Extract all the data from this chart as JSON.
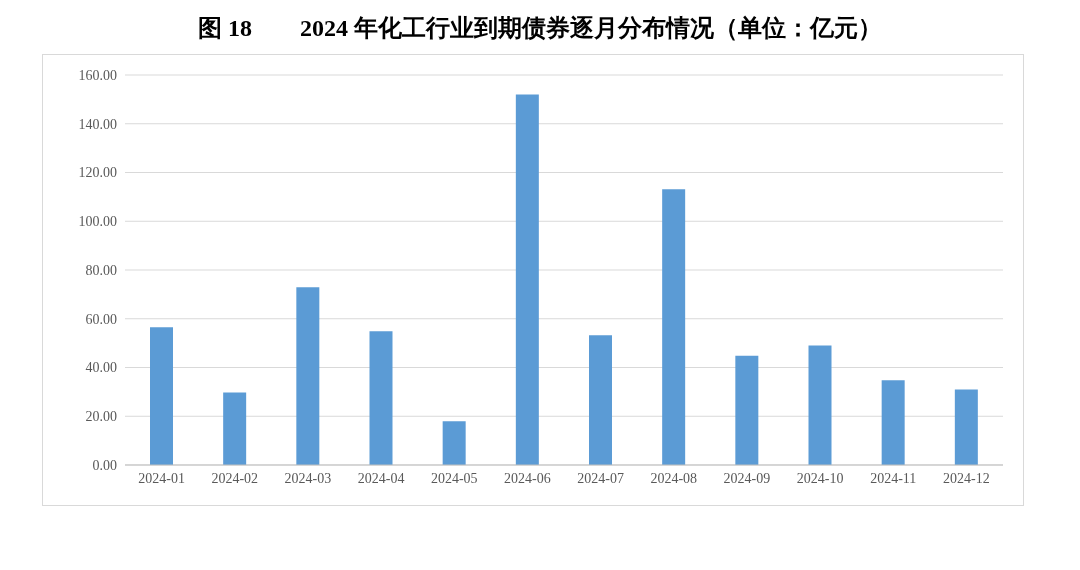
{
  "chart_data": {
    "type": "bar",
    "title": "图 18　　2024 年化工行业到期债券逐月分布情况（单位：亿元）",
    "categories": [
      "2024-01",
      "2024-02",
      "2024-03",
      "2024-04",
      "2024-05",
      "2024-06",
      "2024-07",
      "2024-08",
      "2024-09",
      "2024-10",
      "2024-11",
      "2024-12"
    ],
    "values": [
      56.5,
      29.7,
      72.9,
      54.9,
      18.0,
      152.0,
      53.2,
      113.1,
      44.8,
      49.0,
      34.8,
      31.0
    ],
    "color": "#5b9bd5",
    "ylim": [
      0,
      160
    ],
    "yticks": [
      {
        "value": 0,
        "label": "0.00"
      },
      {
        "value": 20,
        "label": "20.00"
      },
      {
        "value": 40,
        "label": "40.00"
      },
      {
        "value": 60,
        "label": "60.00"
      },
      {
        "value": 80,
        "label": "80.00"
      },
      {
        "value": 100,
        "label": "100.00"
      },
      {
        "value": 120,
        "label": "120.00"
      },
      {
        "value": 140,
        "label": "140.00"
      },
      {
        "value": 160,
        "label": "160.00"
      }
    ],
    "grid": "y"
  }
}
